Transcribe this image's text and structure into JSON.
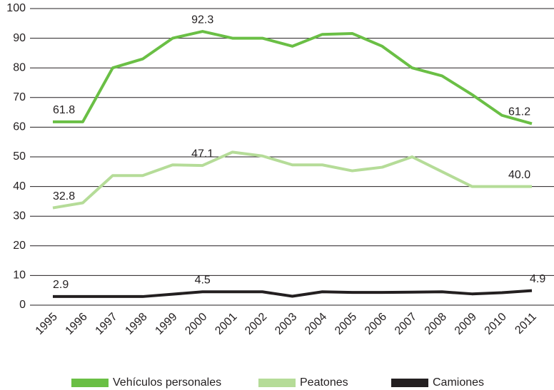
{
  "chart_data": {
    "type": "line",
    "categories": [
      "1995",
      "1996",
      "1997",
      "1998",
      "1999",
      "2000",
      "2001",
      "2002",
      "2003",
      "2004",
      "2005",
      "2006",
      "2007",
      "2008",
      "2009",
      "2010",
      "2011"
    ],
    "series": [
      {
        "name": "Vehículos personales",
        "color": "#6abf45",
        "values": [
          61.8,
          61.8,
          80,
          83,
          90,
          92.3,
          90,
          90,
          87.3,
          91.3,
          91.6,
          87.3,
          80,
          77.3,
          71,
          64,
          61.2
        ],
        "value_labels": [
          "61.8",
          null,
          null,
          null,
          null,
          "92.3",
          null,
          null,
          null,
          null,
          null,
          null,
          null,
          null,
          null,
          null,
          "61.2"
        ]
      },
      {
        "name": "Peatones",
        "color": "#b5dc98",
        "values": [
          32.8,
          34.5,
          43.7,
          43.7,
          47.3,
          47.1,
          51.6,
          50.3,
          47.3,
          47.3,
          45.3,
          46.5,
          50,
          45,
          40,
          40,
          40.0
        ],
        "value_labels": [
          "32.8",
          null,
          null,
          null,
          null,
          "47.1",
          null,
          null,
          null,
          null,
          null,
          null,
          null,
          null,
          null,
          null,
          "40.0"
        ]
      },
      {
        "name": "Camiones",
        "color": "#231f20",
        "values": [
          2.9,
          2.9,
          2.9,
          2.9,
          3.7,
          4.5,
          4.5,
          4.5,
          3.0,
          4.5,
          4.3,
          4.3,
          4.4,
          4.5,
          3.8,
          4.2,
          4.9
        ],
        "value_labels": [
          "2.9",
          null,
          null,
          null,
          null,
          "4.5",
          null,
          null,
          null,
          null,
          null,
          null,
          null,
          null,
          null,
          null,
          "4.9"
        ]
      }
    ],
    "ylim": [
      0,
      100
    ],
    "yticks": [
      0,
      10,
      20,
      30,
      40,
      50,
      60,
      70,
      80,
      90,
      100
    ],
    "grid": true,
    "legend": "bottom"
  }
}
